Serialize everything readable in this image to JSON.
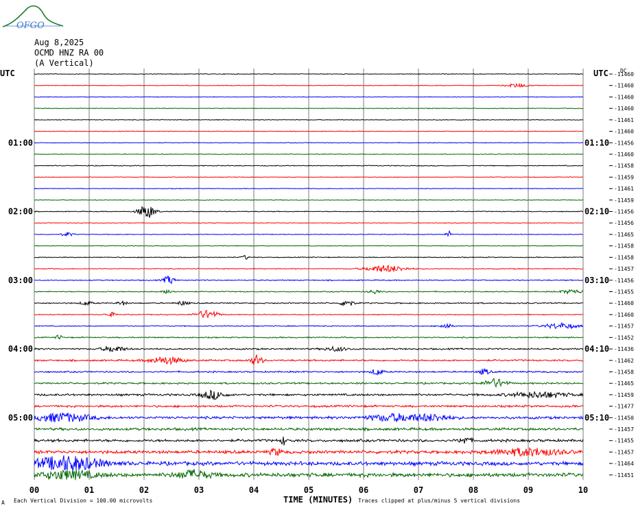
{
  "logo": {
    "text": "OFGO",
    "color": "#3a78c9"
  },
  "header": {
    "date": "Aug 8,2025",
    "station": "OCMD HNZ RA 00",
    "component": "(A Vertical)"
  },
  "left_axis_title": "UTC",
  "right_axis_title": "UTC",
  "dc_header": "DC",
  "footer": {
    "left_marker": "A",
    "scale": "Each Vertical Division =  100.00 microvolts",
    "clip": "Traces clipped at plus/minus 5 vertical divisions"
  },
  "colors": {
    "black": "#000000",
    "red": "#ff0000",
    "blue": "#0000ff",
    "green": "#006400"
  },
  "chart_data": {
    "type": "line",
    "xlabel": "TIME (MINUTES)",
    "xlim": [
      0,
      10
    ],
    "x_ticks": [
      "00",
      "01",
      "02",
      "03",
      "04",
      "05",
      "06",
      "07",
      "08",
      "09",
      "10"
    ],
    "left_time_labels": [
      "01:00",
      "02:00",
      "03:00",
      "04:00",
      "05:00"
    ],
    "right_time_labels": [
      "01:10",
      "02:10",
      "03:10",
      "04:10",
      "05:10"
    ],
    "time_label_rows": [
      6,
      12,
      18,
      24,
      30
    ],
    "trace_color_cycle": [
      "black",
      "red",
      "blue",
      "green"
    ],
    "dc_offsets": [
      -11460,
      -11460,
      -11460,
      -11460,
      -11461,
      -11460,
      -11456,
      -11460,
      -11458,
      -11459,
      -11461,
      -11459,
      -11456,
      -11456,
      -11465,
      -11458,
      -11458,
      -11457,
      -11456,
      -11455,
      -11460,
      -11460,
      -11457,
      -11452,
      -11436,
      -11462,
      -11458,
      -11465,
      -11459,
      -11477,
      -11450,
      -11457,
      -11455,
      -11457,
      -11464,
      -11451
    ],
    "noise_level": [
      0.4,
      0.4,
      0.4,
      0.4,
      0.4,
      0.4,
      0.4,
      0.4,
      0.5,
      0.4,
      0.4,
      0.4,
      0.5,
      0.4,
      0.4,
      0.4,
      0.5,
      0.5,
      0.6,
      0.6,
      0.7,
      0.5,
      0.6,
      0.7,
      0.9,
      1.0,
      0.9,
      1.0,
      1.2,
      1.2,
      1.5,
      1.5,
      1.5,
      1.8,
      2.2,
      2.2
    ],
    "events": [
      {
        "row": 1,
        "minute": 8.8,
        "amp": 2.5,
        "width": 0.2
      },
      {
        "row": 12,
        "minute": 2.05,
        "amp": 10,
        "width": 0.15
      },
      {
        "row": 14,
        "minute": 0.6,
        "amp": 3,
        "width": 0.1
      },
      {
        "row": 14,
        "minute": 7.55,
        "amp": 5,
        "width": 0.05
      },
      {
        "row": 16,
        "minute": 3.85,
        "amp": 3,
        "width": 0.06
      },
      {
        "row": 17,
        "minute": 6.4,
        "amp": 5,
        "width": 0.35
      },
      {
        "row": 18,
        "minute": 2.45,
        "amp": 6,
        "width": 0.1
      },
      {
        "row": 19,
        "minute": 2.45,
        "amp": 3,
        "width": 0.1
      },
      {
        "row": 19,
        "minute": 6.2,
        "amp": 3,
        "width": 0.1
      },
      {
        "row": 19,
        "minute": 9.8,
        "amp": 3,
        "width": 0.2
      },
      {
        "row": 20,
        "minute": 0.95,
        "amp": 3,
        "width": 0.1
      },
      {
        "row": 20,
        "minute": 1.6,
        "amp": 3,
        "width": 0.08
      },
      {
        "row": 20,
        "minute": 2.7,
        "amp": 3,
        "width": 0.1
      },
      {
        "row": 20,
        "minute": 5.7,
        "amp": 6,
        "width": 0.1
      },
      {
        "row": 21,
        "minute": 1.4,
        "amp": 3,
        "width": 0.1
      },
      {
        "row": 21,
        "minute": 3.15,
        "amp": 6,
        "width": 0.2
      },
      {
        "row": 22,
        "minute": 7.5,
        "amp": 4,
        "width": 0.1
      },
      {
        "row": 22,
        "minute": 9.6,
        "amp": 4,
        "width": 0.3
      },
      {
        "row": 23,
        "minute": 0.45,
        "amp": 4,
        "width": 0.05
      },
      {
        "row": 24,
        "minute": 1.45,
        "amp": 4,
        "width": 0.2
      },
      {
        "row": 24,
        "minute": 5.5,
        "amp": 3,
        "width": 0.2
      },
      {
        "row": 25,
        "minute": 2.4,
        "amp": 5,
        "width": 0.3
      },
      {
        "row": 25,
        "minute": 4.05,
        "amp": 8,
        "width": 0.1
      },
      {
        "row": 26,
        "minute": 6.25,
        "amp": 5,
        "width": 0.1
      },
      {
        "row": 26,
        "minute": 8.2,
        "amp": 4,
        "width": 0.1
      },
      {
        "row": 27,
        "minute": 8.4,
        "amp": 6,
        "width": 0.2
      },
      {
        "row": 28,
        "minute": 3.25,
        "amp": 6,
        "width": 0.2
      },
      {
        "row": 28,
        "minute": 9.2,
        "amp": 4,
        "width": 0.5
      },
      {
        "row": 30,
        "minute": 0.5,
        "amp": 6,
        "width": 0.5
      },
      {
        "row": 30,
        "minute": 6.6,
        "amp": 5,
        "width": 0.5
      },
      {
        "row": 30,
        "minute": 7.3,
        "amp": 4,
        "width": 0.3
      },
      {
        "row": 32,
        "minute": 4.55,
        "amp": 6,
        "width": 0.05
      },
      {
        "row": 32,
        "minute": 7.85,
        "amp": 5,
        "width": 0.1
      },
      {
        "row": 33,
        "minute": 4.4,
        "amp": 5,
        "width": 0.1
      },
      {
        "row": 33,
        "minute": 9.0,
        "amp": 5,
        "width": 0.6
      },
      {
        "row": 34,
        "minute": 0.6,
        "amp": 10,
        "width": 0.6
      },
      {
        "row": 35,
        "minute": 0.6,
        "amp": 6,
        "width": 0.5
      },
      {
        "row": 35,
        "minute": 2.9,
        "amp": 6,
        "width": 0.3
      }
    ],
    "units_per_division": "100.00 microvolts",
    "clip_divisions": 5
  }
}
